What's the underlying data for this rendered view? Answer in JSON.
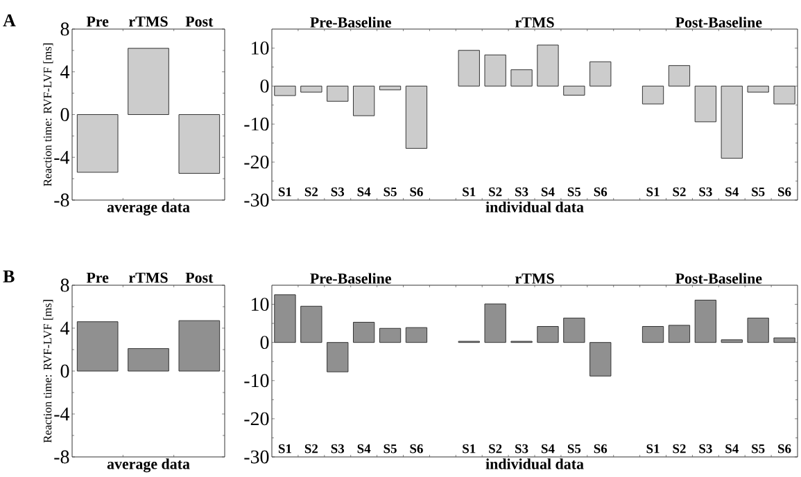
{
  "chart_data": [
    {
      "type": "bar",
      "categories": [
        "Pre",
        "rTMS",
        "Post"
      ],
      "values": [
        -5.4,
        6.2,
        -5.5
      ],
      "color": "#cccccc",
      "ylim": [
        -8,
        8
      ],
      "yticks": [
        -8,
        -4,
        0,
        4,
        8
      ],
      "xlabel": "average data",
      "ylabel": "Reaction time: RVF-LVF [ms]",
      "annotations": [
        "A"
      ]
    },
    {
      "type": "bar",
      "categories": [
        "S1",
        "S2",
        "S3",
        "S4",
        "S5",
        "S6",
        null,
        "S1",
        "S2",
        "S3",
        "S4",
        "S5",
        "S6",
        null,
        "S1",
        "S2",
        "S3",
        "S4",
        "S5",
        "S6"
      ],
      "values": [
        -2.5,
        -1.6,
        -4.0,
        -7.8,
        -1.0,
        -16.4,
        null,
        9.4,
        8.2,
        4.3,
        10.8,
        -2.4,
        6.4,
        null,
        -4.7,
        5.4,
        -9.4,
        -19.0,
        -1.6,
        -4.7
      ],
      "color": "#cccccc",
      "ylim": [
        -30,
        15
      ],
      "yticks": [
        -30,
        -20,
        -10,
        0,
        10
      ],
      "xlabel": "individual data",
      "annotations": [
        "Pre-Baseline",
        "rTMS",
        "Post-Baseline"
      ]
    },
    {
      "type": "bar",
      "categories": [
        "Pre",
        "rTMS",
        "Post"
      ],
      "values": [
        4.6,
        2.1,
        4.7
      ],
      "color": "#909090",
      "ylim": [
        -8,
        8
      ],
      "yticks": [
        -8,
        -4,
        0,
        4,
        8
      ],
      "xlabel": "average data",
      "ylabel": "Reaction time: RVF-LVF [ms]",
      "annotations": [
        "B"
      ]
    },
    {
      "type": "bar",
      "categories": [
        "S1",
        "S2",
        "S3",
        "S4",
        "S5",
        "S6",
        null,
        "S1",
        "S2",
        "S3",
        "S4",
        "S5",
        "S6",
        null,
        "S1",
        "S2",
        "S3",
        "S4",
        "S5",
        "S6"
      ],
      "values": [
        12.5,
        9.5,
        -7.7,
        5.3,
        3.7,
        3.9,
        null,
        0.3,
        10.1,
        0.3,
        4.2,
        6.4,
        -8.8,
        null,
        4.2,
        4.5,
        11.1,
        0.7,
        6.4,
        1.2
      ],
      "color": "#909090",
      "ylim": [
        -30,
        15
      ],
      "yticks": [
        -30,
        -20,
        -10,
        0,
        10
      ],
      "xlabel": "individual data",
      "annotations": [
        "Pre-Baseline",
        "rTMS",
        "Post-Baseline"
      ]
    }
  ]
}
